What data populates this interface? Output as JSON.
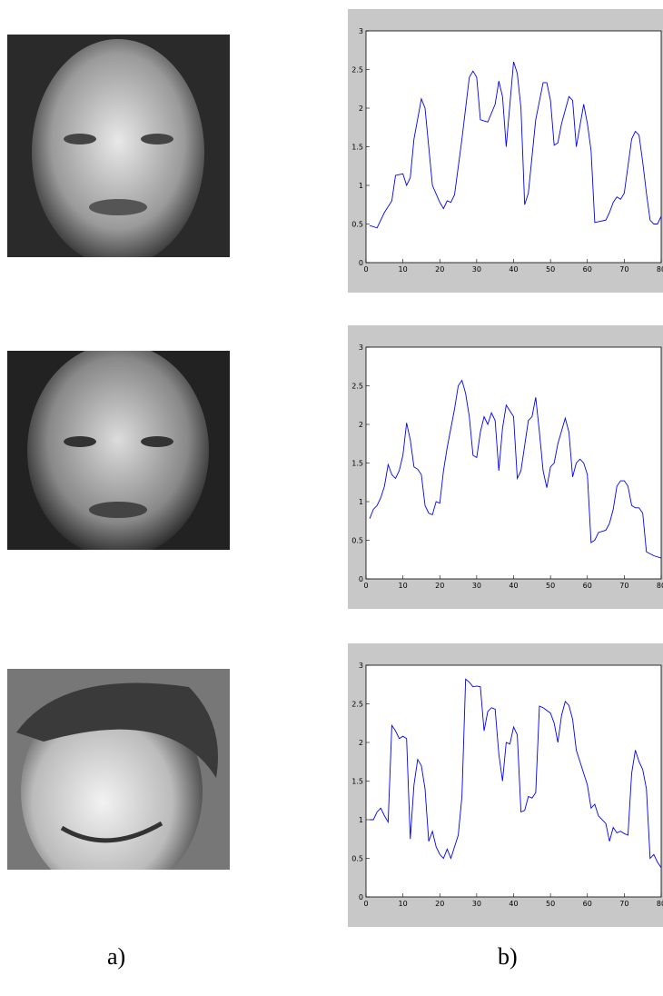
{
  "chart_data": [
    {
      "type": "line",
      "color": "#0000ff",
      "xlim": [
        0,
        80
      ],
      "ylim": [
        0,
        3
      ],
      "xticks": [
        0,
        10,
        20,
        30,
        40,
        50,
        60,
        70,
        80
      ],
      "yticks": [
        0,
        0.5,
        1,
        1.5,
        2,
        2.5,
        3
      ],
      "x": [
        1,
        3,
        5,
        7,
        8,
        10,
        11,
        12,
        13,
        15,
        16,
        17,
        18,
        20,
        21,
        22,
        23,
        24,
        26,
        28,
        29,
        30,
        31,
        33,
        35,
        36,
        37,
        38,
        40,
        41,
        42,
        43,
        44,
        46,
        48,
        49,
        50,
        51,
        52,
        53,
        55,
        56,
        57,
        59,
        60,
        61,
        62,
        65,
        66,
        67,
        68,
        69,
        70,
        72,
        73,
        74,
        75,
        76,
        77,
        78,
        79,
        80
      ],
      "values": [
        0.48,
        0.45,
        0.65,
        0.8,
        1.13,
        1.15,
        1.0,
        1.1,
        1.6,
        2.12,
        2.0,
        1.5,
        1.0,
        0.78,
        0.7,
        0.8,
        0.78,
        0.88,
        1.6,
        2.4,
        2.48,
        2.4,
        1.85,
        1.82,
        2.05,
        2.35,
        2.15,
        1.5,
        2.6,
        2.45,
        2.0,
        0.75,
        0.9,
        1.85,
        2.33,
        2.33,
        2.1,
        1.52,
        1.55,
        1.8,
        2.15,
        2.1,
        1.5,
        2.05,
        1.8,
        1.45,
        0.52,
        0.55,
        0.65,
        0.78,
        0.85,
        0.82,
        0.9,
        1.6,
        1.7,
        1.65,
        1.3,
        0.9,
        0.55,
        0.5,
        0.5,
        0.6
      ]
    },
    {
      "type": "line",
      "color": "#0000ff",
      "xlim": [
        0,
        80
      ],
      "ylim": [
        0,
        3
      ],
      "xticks": [
        0,
        10,
        20,
        30,
        40,
        50,
        60,
        70,
        80
      ],
      "yticks": [
        0,
        0.5,
        1,
        1.5,
        2,
        2.5,
        3
      ],
      "x": [
        1,
        2,
        3,
        4,
        5,
        6,
        7,
        8,
        9,
        10,
        11,
        12,
        13,
        14,
        15,
        16,
        17,
        18,
        19,
        20,
        21,
        22,
        24,
        25,
        26,
        27,
        28,
        29,
        30,
        31,
        32,
        33,
        34,
        35,
        36,
        37,
        38,
        40,
        41,
        42,
        44,
        45,
        46,
        47,
        48,
        49,
        50,
        51,
        52,
        54,
        55,
        56,
        57,
        58,
        59,
        60,
        61,
        62,
        63,
        65,
        66,
        67,
        68,
        69,
        70,
        71,
        72,
        73,
        74,
        75,
        76,
        78,
        80
      ],
      "values": [
        0.78,
        0.9,
        0.95,
        1.05,
        1.2,
        1.48,
        1.35,
        1.3,
        1.4,
        1.6,
        2.02,
        1.8,
        1.45,
        1.42,
        1.35,
        0.95,
        0.85,
        0.83,
        1.0,
        0.98,
        1.4,
        1.7,
        2.2,
        2.5,
        2.57,
        2.4,
        2.1,
        1.6,
        1.57,
        1.9,
        2.1,
        2.0,
        2.15,
        2.05,
        1.4,
        1.95,
        2.25,
        2.1,
        1.3,
        1.4,
        2.05,
        2.1,
        2.35,
        1.9,
        1.4,
        1.18,
        1.45,
        1.5,
        1.75,
        2.08,
        1.9,
        1.32,
        1.5,
        1.55,
        1.5,
        1.35,
        0.47,
        0.5,
        0.6,
        0.63,
        0.72,
        0.9,
        1.2,
        1.27,
        1.27,
        1.2,
        0.95,
        0.92,
        0.92,
        0.85,
        0.35,
        0.3,
        0.27
      ]
    },
    {
      "type": "line",
      "color": "#0000ff",
      "xlim": [
        0,
        80
      ],
      "ylim": [
        0,
        3
      ],
      "xticks": [
        0,
        10,
        20,
        30,
        40,
        50,
        60,
        70,
        80
      ],
      "yticks": [
        0,
        0.5,
        1,
        1.5,
        2,
        2.5,
        3
      ],
      "x": [
        1,
        2,
        3,
        4,
        5,
        6,
        7,
        8,
        9,
        10,
        11,
        12,
        13,
        14,
        15,
        16,
        17,
        18,
        19,
        20,
        21,
        22,
        23,
        24,
        25,
        26,
        27,
        28,
        29,
        30,
        31,
        32,
        33,
        34,
        35,
        36,
        37,
        38,
        39,
        40,
        41,
        42,
        43,
        44,
        45,
        46,
        47,
        48,
        50,
        51,
        52,
        53,
        54,
        55,
        56,
        57,
        58,
        60,
        61,
        62,
        63,
        65,
        66,
        67,
        68,
        69,
        70,
        71,
        72,
        73,
        74,
        75,
        76,
        77,
        78,
        79,
        80
      ],
      "values": [
        1.0,
        1.0,
        1.1,
        1.15,
        1.05,
        0.97,
        2.22,
        2.15,
        2.05,
        2.08,
        2.05,
        0.75,
        1.45,
        1.78,
        1.7,
        1.4,
        0.72,
        0.85,
        0.65,
        0.55,
        0.5,
        0.62,
        0.5,
        0.65,
        0.8,
        1.3,
        2.82,
        2.78,
        2.72,
        2.73,
        2.72,
        2.15,
        2.4,
        2.45,
        2.43,
        1.85,
        1.5,
        2.0,
        1.98,
        2.2,
        2.1,
        1.1,
        1.12,
        1.3,
        1.28,
        1.35,
        2.47,
        2.45,
        2.38,
        2.25,
        2.0,
        2.35,
        2.53,
        2.48,
        2.3,
        1.9,
        1.75,
        1.45,
        1.15,
        1.2,
        1.05,
        0.95,
        0.72,
        0.9,
        0.83,
        0.85,
        0.82,
        0.8,
        1.6,
        1.9,
        1.75,
        1.65,
        1.4,
        0.5,
        0.55,
        0.45,
        0.38
      ]
    }
  ],
  "captions": {
    "a": "a)",
    "b": "b)"
  }
}
